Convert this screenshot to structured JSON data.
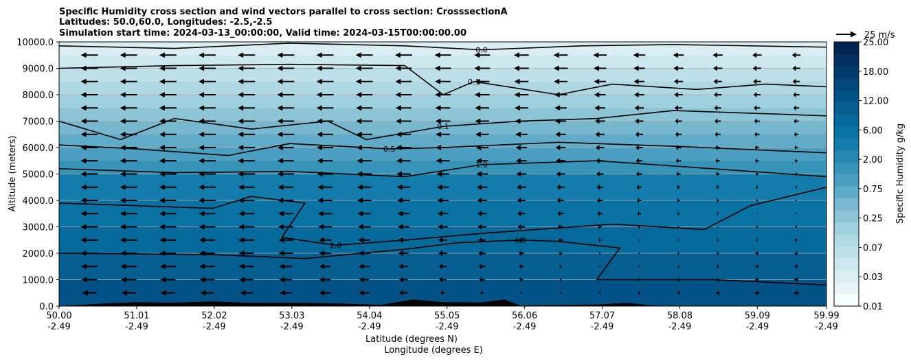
{
  "chart_data": {
    "type": "heatmap",
    "title_lines": [
      "Specific Humidity cross section and wind vectors parallel to cross section: CrosssectionA",
      "Latitudes: 50.0,60.0, Longitudes: -2.5,-2.5",
      "Simulation start time: 2024-03-13_00:00:00, Valid time: 2024-03-15T00:00:00.00"
    ],
    "xlabel_lines": [
      "Latitude (degrees N)",
      "Longitude (degrees E)"
    ],
    "ylabel": "Altitude (meters)",
    "xlim": [
      50.0,
      59.99
    ],
    "ylim": [
      0,
      10000
    ],
    "x_ticks": [
      {
        "lat": "50.00",
        "lon": "-2.49",
        "value": 50.0
      },
      {
        "lat": "51.01",
        "lon": "-2.49",
        "value": 51.01
      },
      {
        "lat": "52.02",
        "lon": "-2.49",
        "value": 52.02
      },
      {
        "lat": "53.03",
        "lon": "-2.49",
        "value": 53.03
      },
      {
        "lat": "54.04",
        "lon": "-2.49",
        "value": 54.04
      },
      {
        "lat": "55.05",
        "lon": "-2.49",
        "value": 55.05
      },
      {
        "lat": "56.06",
        "lon": "-2.49",
        "value": 56.06
      },
      {
        "lat": "57.07",
        "lon": "-2.49",
        "value": 57.07
      },
      {
        "lat": "58.08",
        "lon": "-2.49",
        "value": 58.08
      },
      {
        "lat": "59.09",
        "lon": "-2.49",
        "value": 59.09
      },
      {
        "lat": "59.99",
        "lon": "-2.49",
        "value": 59.99
      }
    ],
    "y_ticks": [
      "0.0",
      "1000.0",
      "2000.0",
      "3000.0",
      "4000.0",
      "5000.0",
      "6000.0",
      "7000.0",
      "8000.0",
      "9000.0",
      "10000.0"
    ],
    "y_tick_values": [
      0,
      1000,
      2000,
      3000,
      4000,
      5000,
      6000,
      7000,
      8000,
      9000,
      10000
    ],
    "grid": "horizontal",
    "colorbar": {
      "label": "Specific Humidity g/kg",
      "levels": [
        0.01,
        0.02,
        0.03,
        0.05,
        0.07,
        0.1,
        0.15,
        0.25,
        0.35,
        0.5,
        0.75,
        1.0,
        1.5,
        2.0,
        3.0,
        4.0,
        6.0,
        9.0,
        12.0,
        15.0,
        18.0,
        21.0,
        25.0
      ],
      "tick_labels": [
        "0.01",
        "0.03",
        "0.07",
        "0.25",
        "0.75",
        "2.00",
        "6.00",
        "12.00",
        "18.00",
        "25.00"
      ],
      "colors": [
        "#f7fcfd",
        "#e8f3f6",
        "#dbeef3",
        "#cde7ee",
        "#bfe0e9",
        "#b0d8e3",
        "#a0cfdd",
        "#8dc4d6",
        "#78b8cf",
        "#62abc8",
        "#4c9fc0",
        "#3893b9",
        "#2587b2",
        "#137caa",
        "#0a72a3",
        "#07689a",
        "#055d90",
        "#045285",
        "#034679",
        "#023a6c",
        "#022f5f",
        "#012451"
      ]
    },
    "humidity_bands": [
      {
        "bottom": 0,
        "top": 1000,
        "value": 9.0
      },
      {
        "bottom": 1000,
        "top": 2000,
        "value": 6.0
      },
      {
        "bottom": 2000,
        "top": 3000,
        "value": 4.0
      },
      {
        "bottom": 3000,
        "top": 4000,
        "value": 3.0
      },
      {
        "bottom": 4000,
        "top": 5000,
        "value": 2.0
      },
      {
        "bottom": 5000,
        "top": 5500,
        "value": 1.0
      },
      {
        "bottom": 5500,
        "top": 6000,
        "value": 0.75
      },
      {
        "bottom": 6000,
        "top": 6500,
        "value": 0.5
      },
      {
        "bottom": 6500,
        "top": 7000,
        "value": 0.35
      },
      {
        "bottom": 7000,
        "top": 7500,
        "value": 0.25
      },
      {
        "bottom": 7500,
        "top": 8000,
        "value": 0.15
      },
      {
        "bottom": 8000,
        "top": 8500,
        "value": 0.1
      },
      {
        "bottom": 8500,
        "top": 9000,
        "value": 0.07
      },
      {
        "bottom": 9000,
        "top": 9500,
        "value": 0.05
      },
      {
        "bottom": 9500,
        "top": 10000,
        "value": 0.03
      }
    ],
    "contours": [
      {
        "label": "4.0",
        "points": [
          [
            50.0,
            2000
          ],
          [
            52.0,
            1950
          ],
          [
            53.2,
            1800
          ],
          [
            54.5,
            2150
          ],
          [
            55.2,
            2400
          ],
          [
            56.0,
            2500
          ],
          [
            56.5,
            2450
          ],
          [
            57.3,
            2200
          ],
          [
            57.0,
            1000
          ],
          [
            58.5,
            1000
          ],
          [
            59.99,
            800
          ]
        ]
      },
      {
        "label": "2.0",
        "points": [
          [
            50.0,
            3900
          ],
          [
            51.0,
            3800
          ],
          [
            52.0,
            3700
          ],
          [
            52.5,
            4150
          ],
          [
            53.2,
            3900
          ],
          [
            52.9,
            2600
          ],
          [
            53.6,
            2300
          ],
          [
            54.5,
            2500
          ],
          [
            55.5,
            2750
          ],
          [
            57.2,
            3100
          ],
          [
            58.4,
            2900
          ],
          [
            59.0,
            3800
          ],
          [
            59.99,
            4500
          ]
        ]
      },
      {
        "label": "1.0",
        "points": [
          [
            50.0,
            5200
          ],
          [
            51.5,
            5050
          ],
          [
            53.0,
            5100
          ],
          [
            54.5,
            4900
          ],
          [
            55.5,
            5350
          ],
          [
            57.0,
            5500
          ],
          [
            58.5,
            5200
          ],
          [
            59.99,
            4900
          ]
        ]
      },
      {
        "label": "0.5",
        "points": [
          [
            50.0,
            6100
          ],
          [
            51.0,
            5950
          ],
          [
            52.2,
            5700
          ],
          [
            53.0,
            6150
          ],
          [
            54.3,
            5950
          ],
          [
            55.0,
            6000
          ],
          [
            56.5,
            6200
          ],
          [
            58.0,
            6050
          ],
          [
            59.99,
            5800
          ]
        ]
      },
      {
        "label": "0.1",
        "points": [
          [
            50.0,
            7000
          ],
          [
            50.8,
            6300
          ],
          [
            51.5,
            7100
          ],
          [
            52.5,
            6700
          ],
          [
            53.5,
            7000
          ],
          [
            54.0,
            6300
          ],
          [
            55.0,
            6800
          ],
          [
            56.0,
            7000
          ],
          [
            57.0,
            7100
          ],
          [
            58.0,
            7400
          ],
          [
            59.0,
            7300
          ],
          [
            59.99,
            7200
          ]
        ]
      },
      {
        "label": "0.1",
        "points": [
          [
            50.0,
            9000
          ],
          [
            51.5,
            9100
          ],
          [
            53.0,
            9150
          ],
          [
            54.5,
            9100
          ],
          [
            55.0,
            8000
          ],
          [
            55.4,
            8500
          ],
          [
            56.5,
            8000
          ],
          [
            57.2,
            8400
          ],
          [
            58.3,
            8200
          ],
          [
            59.2,
            8400
          ],
          [
            59.99,
            8300
          ]
        ]
      },
      {
        "label": "0.0",
        "points": [
          [
            50.0,
            9850
          ],
          [
            51.5,
            9750
          ],
          [
            53.0,
            9950
          ],
          [
            54.5,
            9850
          ],
          [
            55.5,
            9700
          ],
          [
            56.8,
            9850
          ],
          [
            58.0,
            9900
          ],
          [
            59.99,
            9800
          ]
        ]
      }
    ],
    "terrain": [
      [
        50.0,
        0
      ],
      [
        50.6,
        100
      ],
      [
        51.0,
        150
      ],
      [
        51.5,
        130
      ],
      [
        52.0,
        180
      ],
      [
        52.5,
        120
      ],
      [
        53.0,
        130
      ],
      [
        53.6,
        100
      ],
      [
        54.2,
        50
      ],
      [
        54.6,
        250
      ],
      [
        55.0,
        150
      ],
      [
        55.5,
        140
      ],
      [
        55.8,
        250
      ],
      [
        56.0,
        20
      ],
      [
        57.0,
        60
      ],
      [
        57.4,
        120
      ],
      [
        57.7,
        30
      ],
      [
        58.0,
        0
      ],
      [
        59.99,
        0
      ]
    ],
    "wind": {
      "reference_label": "25 m/s",
      "reference_speed": 25,
      "columns": 19,
      "rows": [
        {
          "z": 500,
          "speeds": [
            -20,
            -20,
            -20,
            -19,
            -18,
            -17,
            -16,
            -14,
            -12,
            -6,
            -4,
            -2,
            0,
            2,
            3,
            4,
            5,
            6,
            7
          ]
        },
        {
          "z": 1000,
          "speeds": [
            -22,
            -22,
            -21,
            -21,
            -20,
            -18,
            -16,
            -14,
            -12,
            -10,
            -8,
            -5,
            -2,
            1,
            2,
            3,
            4,
            5,
            6
          ]
        },
        {
          "z": 1500,
          "speeds": [
            -23,
            -23,
            -22,
            -22,
            -21,
            -19,
            -16,
            -15,
            -13,
            -11,
            -9,
            -6,
            -3,
            0,
            1,
            2,
            3,
            4,
            5
          ]
        },
        {
          "z": 2000,
          "speeds": [
            -24,
            -23,
            -23,
            -22,
            -21,
            -20,
            -17,
            -16,
            -14,
            -12,
            -10,
            -7,
            -4,
            -1,
            1,
            2,
            3,
            4,
            4
          ]
        },
        {
          "z": 2500,
          "speeds": [
            -24,
            -24,
            -23,
            -22,
            -22,
            -20,
            -18,
            -17,
            -15,
            -12,
            -10,
            -8,
            -6,
            -3,
            -1,
            1,
            2,
            2,
            3
          ]
        },
        {
          "z": 3000,
          "speeds": [
            -24,
            -24,
            -24,
            -23,
            -22,
            -21,
            -19,
            -18,
            -16,
            -14,
            -12,
            -10,
            -8,
            -5,
            -3,
            -1,
            1,
            2,
            2
          ]
        },
        {
          "z": 3500,
          "speeds": [
            -24,
            -24,
            -24,
            -23,
            -22,
            -21,
            -20,
            -19,
            -17,
            -15,
            -13,
            -11,
            -9,
            -7,
            -5,
            -3,
            -2,
            -1,
            1
          ]
        },
        {
          "z": 4000,
          "speeds": [
            -24,
            -24,
            -24,
            -24,
            -23,
            -22,
            -21,
            -20,
            -18,
            -16,
            -14,
            -12,
            -10,
            -8,
            -6,
            -4,
            -3,
            -2,
            -1
          ]
        },
        {
          "z": 4500,
          "speeds": [
            -24,
            -24,
            -24,
            -24,
            -23,
            -22,
            -21,
            -20,
            -19,
            -17,
            -15,
            -13,
            -11,
            -9,
            -7,
            -5,
            -4,
            -3,
            -2
          ]
        },
        {
          "z": 5000,
          "speeds": [
            -24,
            -24,
            -24,
            -24,
            -24,
            -23,
            -22,
            -21,
            -20,
            -18,
            -16,
            -14,
            -12,
            -10,
            -8,
            -6,
            -5,
            -4,
            -3
          ]
        },
        {
          "z": 5500,
          "speeds": [
            -24,
            -24,
            -24,
            -24,
            -24,
            -23,
            -22,
            -21,
            -20,
            -19,
            -17,
            -15,
            -13,
            -11,
            -9,
            -7,
            -6,
            -5,
            -4
          ]
        },
        {
          "z": 6000,
          "speeds": [
            -24,
            -24,
            -24,
            -24,
            -24,
            -23,
            -23,
            -22,
            -21,
            -20,
            -18,
            -16,
            -14,
            -12,
            -10,
            -8,
            -7,
            -6,
            -5
          ]
        },
        {
          "z": 6500,
          "speeds": [
            -24,
            -24,
            -24,
            -24,
            -24,
            -24,
            -23,
            -22,
            -21,
            -20,
            -19,
            -17,
            -15,
            -13,
            -11,
            -9,
            -8,
            -7,
            -6
          ]
        },
        {
          "z": 7000,
          "speeds": [
            -24,
            -24,
            -24,
            -24,
            -24,
            -24,
            -23,
            -23,
            -22,
            -21,
            -20,
            -18,
            -16,
            -14,
            -12,
            -10,
            -9,
            -8,
            -7
          ]
        },
        {
          "z": 7500,
          "speeds": [
            -24,
            -24,
            -24,
            -24,
            -24,
            -24,
            -24,
            -23,
            -22,
            -21,
            -20,
            -19,
            -17,
            -15,
            -13,
            -11,
            -10,
            -9,
            -8
          ]
        },
        {
          "z": 8000,
          "speeds": [
            -24,
            -24,
            -24,
            -24,
            -24,
            -24,
            -24,
            -23,
            -23,
            -22,
            -21,
            -20,
            -18,
            -16,
            -14,
            -12,
            -11,
            -10,
            -9
          ]
        },
        {
          "z": 8500,
          "speeds": [
            -24,
            -24,
            -24,
            -24,
            -24,
            -24,
            -24,
            -24,
            -23,
            -22,
            -21,
            -20,
            -19,
            -17,
            -15,
            -13,
            -12,
            -11,
            -10
          ]
        },
        {
          "z": 9000,
          "speeds": [
            -24,
            -24,
            -24,
            -24,
            -24,
            -24,
            -24,
            -24,
            -23,
            -23,
            -22,
            -21,
            -20,
            -18,
            -16,
            -14,
            -13,
            -12,
            -11
          ]
        },
        {
          "z": 9500,
          "speeds": [
            -24,
            -24,
            -24,
            -24,
            -24,
            -24,
            -24,
            -24,
            -24,
            -23,
            -22,
            -21,
            -20,
            -19,
            -17,
            -15,
            -14,
            -13,
            -12
          ]
        }
      ]
    }
  }
}
